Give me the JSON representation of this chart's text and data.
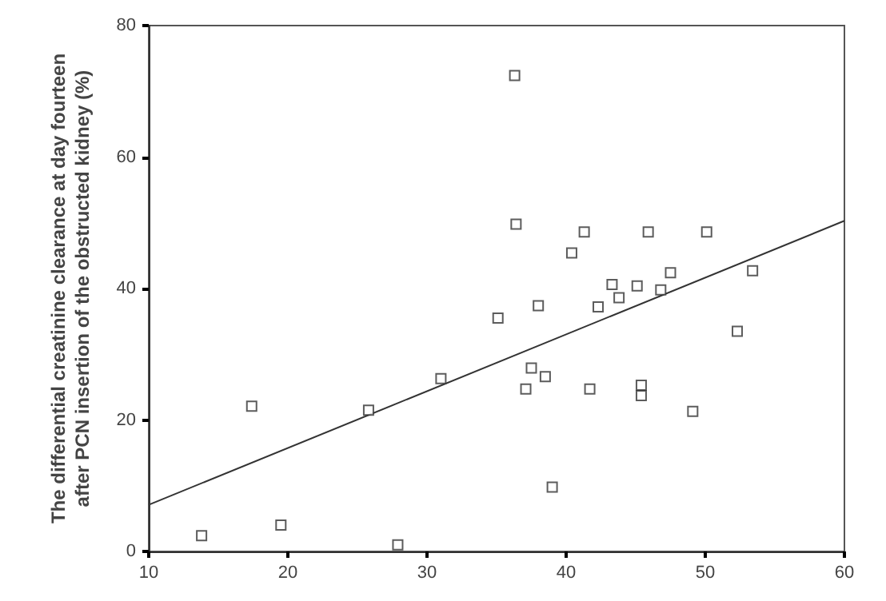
{
  "chart_data": {
    "type": "scatter",
    "ylabel": "The differential creatinine clearance at day fourteen\nafter PCN insertion of the obstructed kidney (%)",
    "xlim": [
      10,
      60
    ],
    "xticks": [
      10,
      20,
      30,
      40,
      50,
      60
    ],
    "ylim": [
      0,
      80
    ],
    "yticks": [
      0,
      20,
      40,
      60,
      80
    ],
    "grid": false,
    "series": [
      {
        "color": "#333333",
        "marker": "square",
        "x": [
          13.8,
          17.4,
          19.5,
          25.8,
          27.9,
          31.0,
          35.1,
          36.3,
          36.4,
          38.0,
          37.5,
          38.5,
          37.1,
          39.0,
          40.4,
          41.3,
          41.7,
          42.3,
          43.3,
          43.8,
          45.1,
          45.4,
          45.4,
          45.9,
          46.8,
          47.5,
          49.1,
          50.1,
          52.3,
          53.4
        ],
        "values": [
          2.4,
          22.1,
          4.0,
          21.5,
          1.0,
          26.3,
          35.5,
          72.4,
          49.8,
          37.4,
          27.9,
          26.6,
          24.7,
          9.8,
          45.4,
          48.6,
          24.7,
          37.2,
          40.6,
          38.6,
          40.4,
          25.3,
          23.7,
          48.6,
          39.8,
          42.4,
          21.3,
          48.6,
          33.5,
          42.7
        ]
      },
      {
        "type": "line",
        "color": "#333333",
        "x": [
          10,
          60
        ],
        "values": [
          7.1,
          50.3
        ],
        "line_style": "solid",
        "marker": "none"
      }
    ]
  }
}
